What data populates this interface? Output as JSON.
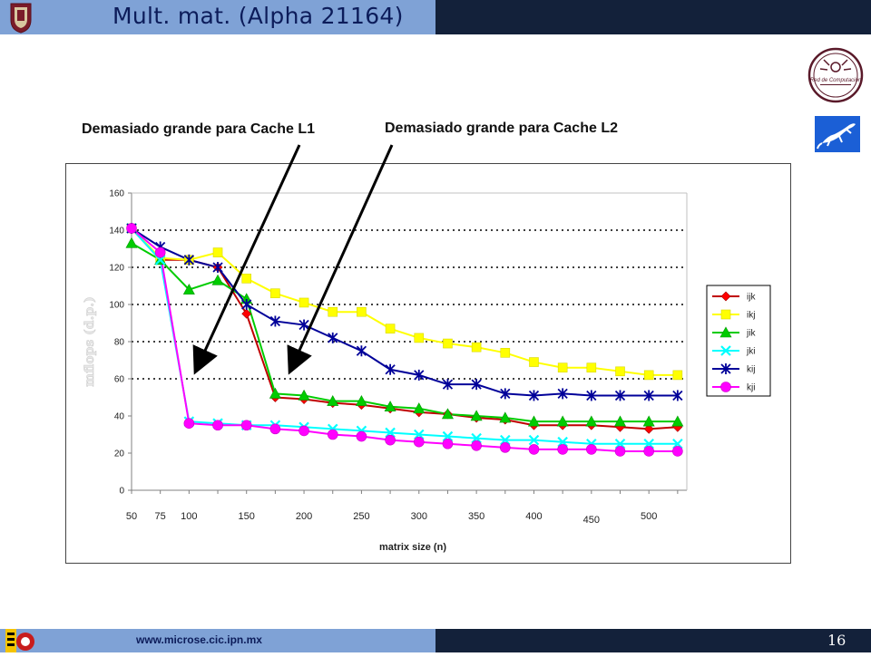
{
  "slide": {
    "title": "Mult. mat. (Alpha 21164)",
    "annotation_l1": "Demasiado grande para Cache L1",
    "annotation_l2": "Demasiado grande para Cache L2",
    "footer_url": "www.microse.cic.ipn.mx",
    "page_number": "16",
    "logo_ipn": "ipn-logo",
    "logo_red_computacion": "Red de Computación",
    "logo_lizard": "lizard-logo",
    "logo_footer": "cic-logo",
    "colors": {
      "header_dark": "#13213a",
      "header_light": "#7fa2d6",
      "title_text": "#0c1c5a"
    }
  },
  "chart_data": {
    "type": "line",
    "title": "",
    "xlabel": "matrix size (n)",
    "ylabel": "mflops (d.p.)",
    "ylim": [
      0,
      160
    ],
    "yticks": [
      0,
      20,
      40,
      60,
      80,
      100,
      120,
      140,
      160
    ],
    "x": [
      25,
      50,
      75,
      100,
      125,
      150,
      175,
      200,
      225,
      250,
      275,
      300,
      325,
      350,
      375,
      400,
      425,
      450,
      475,
      500
    ],
    "xtick_labels": [
      {
        "label": "50",
        "at": 25
      },
      {
        "label": "75",
        "at": 50
      },
      {
        "label": "100",
        "at": 75
      },
      {
        "label": "150",
        "at": 125
      },
      {
        "label": "200",
        "at": 175
      },
      {
        "label": "250",
        "at": 225
      },
      {
        "label": "300",
        "at": 275
      },
      {
        "label": "350",
        "at": 325
      },
      {
        "label": "400",
        "at": 375
      },
      {
        "label": "450",
        "at": 425
      },
      {
        "label": "500",
        "at": 475
      }
    ],
    "grid": "dotted horizontal at 60, 80, 100, 120, 140",
    "legend_position": "right",
    "series": [
      {
        "name": "ijk",
        "color": "#c00000",
        "marker": "diamond",
        "marker_color": "#ff0000",
        "values": [
          141,
          124,
          124,
          120,
          95,
          50,
          49,
          47,
          46,
          44,
          42,
          41,
          39,
          38,
          35,
          35,
          35,
          34,
          33,
          34
        ]
      },
      {
        "name": "ikj",
        "color": "#ffff00",
        "marker": "square",
        "marker_color": "#ffff00",
        "values": [
          141,
          125,
          124,
          128,
          114,
          106,
          101,
          96,
          96,
          87,
          82,
          79,
          77,
          74,
          69,
          66,
          66,
          64,
          62,
          62
        ]
      },
      {
        "name": "jik",
        "color": "#00cc00",
        "marker": "triangle",
        "marker_color": "#00cc00",
        "values": [
          133,
          124,
          108,
          113,
          103,
          52,
          51,
          48,
          48,
          45,
          44,
          41,
          40,
          39,
          37,
          37,
          37,
          37,
          37,
          37
        ]
      },
      {
        "name": "jki",
        "color": "#00ffff",
        "marker": "x",
        "marker_color": "#00ffff",
        "values": [
          141,
          124,
          37,
          36,
          35,
          35,
          34,
          33,
          32,
          31,
          30,
          29,
          28,
          27,
          27,
          26,
          25,
          25,
          25,
          25
        ]
      },
      {
        "name": "kij",
        "color": "#000099",
        "marker": "star",
        "marker_color": "#000099",
        "values": [
          141,
          131,
          124,
          120,
          100,
          91,
          89,
          82,
          75,
          65,
          62,
          57,
          57,
          52,
          51,
          52,
          51,
          51,
          51,
          51
        ]
      },
      {
        "name": "kji",
        "color": "#ff00ff",
        "marker": "circle",
        "marker_color": "#ff00ff",
        "values": [
          141,
          128,
          36,
          35,
          35,
          33,
          32,
          30,
          29,
          27,
          26,
          25,
          24,
          23,
          22,
          22,
          22,
          21,
          21,
          21
        ]
      }
    ]
  }
}
